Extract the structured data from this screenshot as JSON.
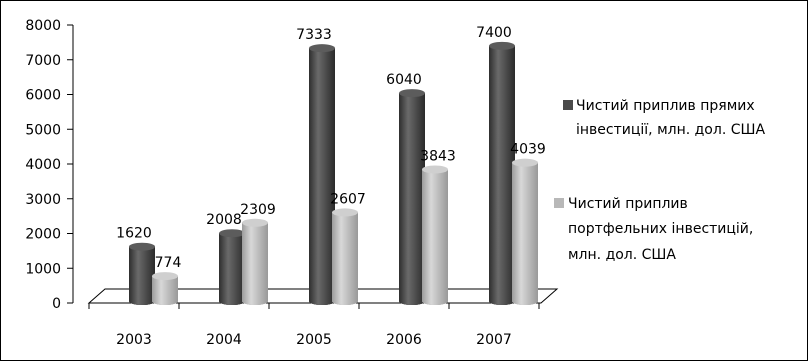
{
  "chart_data": {
    "type": "bar",
    "categories": [
      "2003",
      "2004",
      "2005",
      "2006",
      "2007"
    ],
    "series": [
      {
        "name": "Чистий приплив  прямих інвестиції, млн. дол. США",
        "name_lines": [
          "Чистий приплив  прямих",
          "інвестиції, млн. дол. США"
        ],
        "values": [
          1620,
          2008,
          7333,
          6040,
          7400
        ],
        "color": "#4a4a4a"
      },
      {
        "name": "Чистий приплив портфельних інвестицій, млн. дол. США",
        "name_lines": [
          "Чистий приплив",
          "портфельних інвестицій,",
          "млн. дол. США"
        ],
        "values": [
          774,
          2309,
          2607,
          3843,
          4039
        ],
        "color": "#b8b8b8"
      }
    ],
    "yticks": [
      "0",
      "1000",
      "2000",
      "3000",
      "4000",
      "5000",
      "6000",
      "7000",
      "8000"
    ],
    "ylim": [
      0,
      8000
    ],
    "grid": false,
    "legend": "right",
    "three_d": true
  }
}
